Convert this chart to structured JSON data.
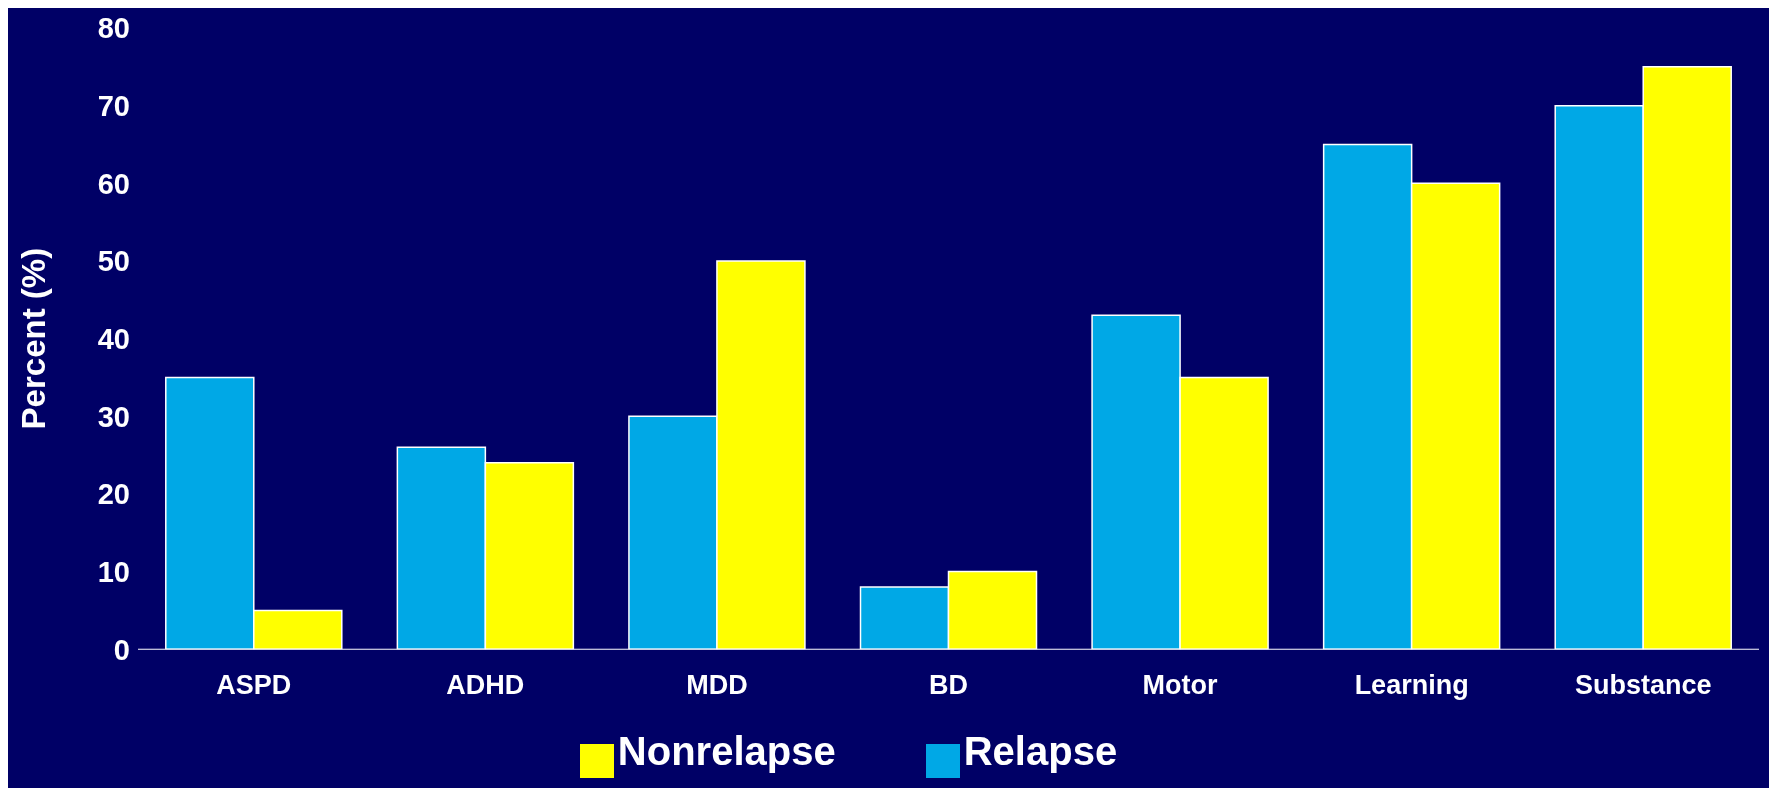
{
  "chart_data": {
    "type": "bar",
    "ylabel": "Percent (%)",
    "categories": [
      "ASPD",
      "ADHD",
      "MDD",
      "BD",
      "Motor",
      "Learning",
      "Substance"
    ],
    "series": [
      {
        "name": "Relapse",
        "color": "#00a8e6",
        "values": [
          35,
          26,
          30,
          8,
          43,
          65,
          70
        ]
      },
      {
        "name": "Nonrelapse",
        "color": "#ffff00",
        "values": [
          5,
          24,
          50,
          10,
          35,
          60,
          75
        ]
      }
    ],
    "ylim": [
      0,
      80
    ],
    "yticks": [
      0,
      10,
      20,
      30,
      40,
      50,
      60,
      70,
      80
    ],
    "grid": false,
    "legend": "bottom"
  }
}
